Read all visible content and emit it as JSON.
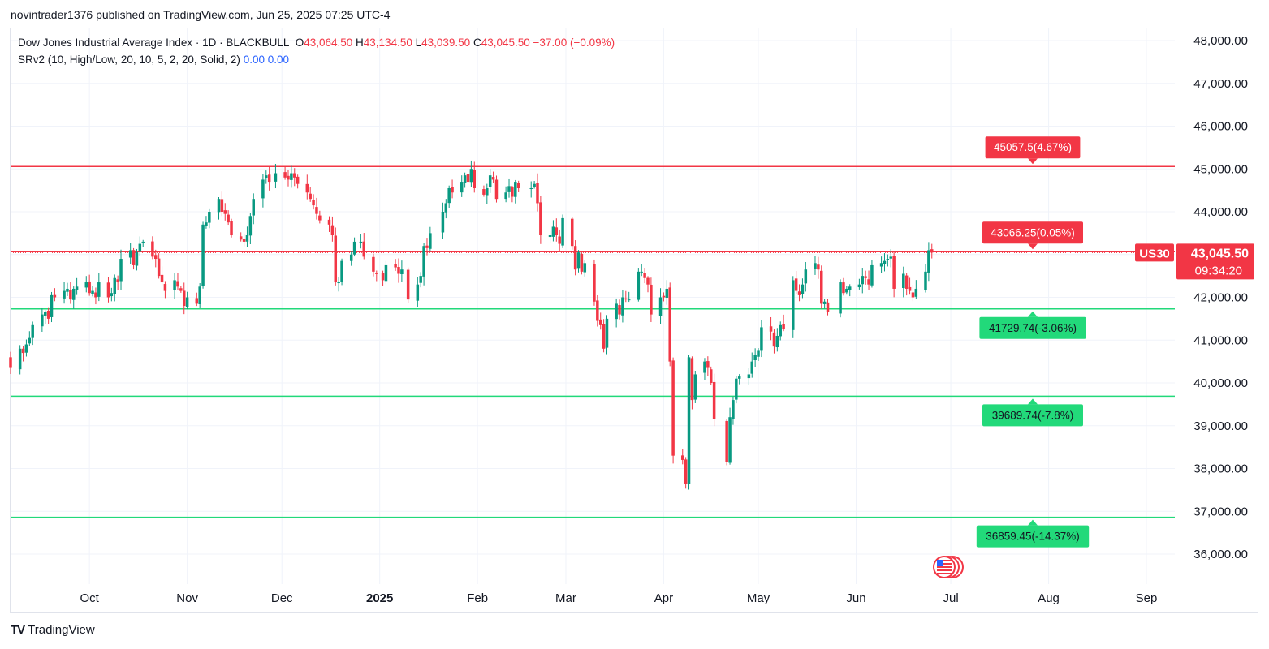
{
  "publisher": "novintrader1376 published on TradingView.com, Jun 25, 2025 07:25 UTC-4",
  "legend": {
    "title": "Dow Jones Industrial Average Index · 1D · BLACKBULL",
    "o_label": "O",
    "o_value": "43,064.50",
    "h_label": "H",
    "h_value": "43,134.50",
    "l_label": "L",
    "l_value": "43,039.50",
    "c_label": "C",
    "c_value": "43,045.50",
    "change": "−37.00 (−0.09%)",
    "indicator": "SRv2 (10, High/Low, 20, 10, 5, 2, 20, Solid, 2)",
    "ind_v1": "0.00",
    "ind_v2": "0.00"
  },
  "footer": {
    "brand": "TradingView",
    "logo": "TV"
  },
  "colors": {
    "up": "#089981",
    "down": "#f23645",
    "support": "#22d97a",
    "resistance": "#f23645",
    "grid": "#f0f3fa"
  },
  "chart_data": {
    "type": "candlestick",
    "symbol": "US30",
    "timeframe": "1D",
    "ylim": [
      35500,
      48300
    ],
    "y_ticks": [
      "48,000.00",
      "47,000.00",
      "46,000.00",
      "45,000.00",
      "44,000.00",
      "43,000.00",
      "42,000.00",
      "41,000.00",
      "40,000.00",
      "39,000.00",
      "38,000.00",
      "37,000.00",
      "36,000.00"
    ],
    "y_tick_values": [
      48000,
      47000,
      46000,
      45000,
      44000,
      43000,
      42000,
      41000,
      40000,
      39000,
      38000,
      37000,
      36000
    ],
    "x_ticks": [
      {
        "label": "Oct",
        "date": "2024-10-01",
        "bold": false
      },
      {
        "label": "Nov",
        "date": "2024-11-01",
        "bold": false
      },
      {
        "label": "Dec",
        "date": "2024-12-01",
        "bold": false
      },
      {
        "label": "2025",
        "date": "2025-01-01",
        "bold": true
      },
      {
        "label": "Feb",
        "date": "2025-02-01",
        "bold": false
      },
      {
        "label": "Mar",
        "date": "2025-03-01",
        "bold": false
      },
      {
        "label": "Apr",
        "date": "2025-04-01",
        "bold": false
      },
      {
        "label": "May",
        "date": "2025-05-01",
        "bold": false
      },
      {
        "label": "Jun",
        "date": "2025-06-01",
        "bold": false
      },
      {
        "label": "Jul",
        "date": "2025-07-01",
        "bold": false
      },
      {
        "label": "Aug",
        "date": "2025-08-01",
        "bold": false
      },
      {
        "label": "Sep",
        "date": "2025-09-01",
        "bold": false
      }
    ],
    "x_range": [
      "2024-09-06",
      "2025-09-10"
    ],
    "last_price": {
      "symbol_label": "US30",
      "value": 43045.5,
      "value_label": "43,045.50",
      "countdown": "09:34:20"
    },
    "levels": [
      {
        "value": 45057.5,
        "label": "45057.5(4.67%)",
        "kind": "resistance"
      },
      {
        "value": 43066.25,
        "label": "43066.25(0.05%)",
        "kind": "resistance"
      },
      {
        "value": 41729.74,
        "label": "41729.74(-3.06%)",
        "kind": "support"
      },
      {
        "value": 39689.74,
        "label": "39689.74(-7.8%)",
        "kind": "support"
      },
      {
        "value": 36859.45,
        "label": "36859.45(-14.37%)",
        "kind": "support"
      }
    ],
    "closes": [
      [
        "2024-09-06",
        40350
      ],
      [
        "2024-09-09",
        40800
      ],
      [
        "2024-09-10",
        40700
      ],
      [
        "2024-09-11",
        40900
      ],
      [
        "2024-09-12",
        41050
      ],
      [
        "2024-09-13",
        41350
      ],
      [
        "2024-09-16",
        41600
      ],
      [
        "2024-09-17",
        41650
      ],
      [
        "2024-09-18",
        41500
      ],
      [
        "2024-09-19",
        42050
      ],
      [
        "2024-09-20",
        42000
      ],
      [
        "2024-09-23",
        42150
      ],
      [
        "2024-09-24",
        42200
      ],
      [
        "2024-09-25",
        41950
      ],
      [
        "2024-09-26",
        42200
      ],
      [
        "2024-09-27",
        42250
      ],
      [
        "2024-09-30",
        42350
      ],
      [
        "2024-10-01",
        42100
      ],
      [
        "2024-10-02",
        42150
      ],
      [
        "2024-10-03",
        42000
      ],
      [
        "2024-10-04",
        42350
      ],
      [
        "2024-10-07",
        42000
      ],
      [
        "2024-10-08",
        42100
      ],
      [
        "2024-10-09",
        42450
      ],
      [
        "2024-10-10",
        42350
      ],
      [
        "2024-10-11",
        42900
      ],
      [
        "2024-10-14",
        43100
      ],
      [
        "2024-10-15",
        42750
      ],
      [
        "2024-10-16",
        43050
      ],
      [
        "2024-10-17",
        43250
      ],
      [
        "2024-10-18",
        43300
      ],
      [
        "2024-10-21",
        42950
      ],
      [
        "2024-10-22",
        42900
      ],
      [
        "2024-10-23",
        42500
      ],
      [
        "2024-10-24",
        42350
      ],
      [
        "2024-10-25",
        42150
      ],
      [
        "2024-10-28",
        42400
      ],
      [
        "2024-10-29",
        42250
      ],
      [
        "2024-10-30",
        42150
      ],
      [
        "2024-10-31",
        41800
      ],
      [
        "2024-11-01",
        42000
      ],
      [
        "2024-11-04",
        41850
      ],
      [
        "2024-11-05",
        42250
      ],
      [
        "2024-11-06",
        43700
      ],
      [
        "2024-11-07",
        43750
      ],
      [
        "2024-11-08",
        44000
      ],
      [
        "2024-11-11",
        44300
      ],
      [
        "2024-11-12",
        44000
      ],
      [
        "2024-11-13",
        43950
      ],
      [
        "2024-11-14",
        43750
      ],
      [
        "2024-11-15",
        43450
      ],
      [
        "2024-11-18",
        43350
      ],
      [
        "2024-11-19",
        43300
      ],
      [
        "2024-11-20",
        43450
      ],
      [
        "2024-11-21",
        43900
      ],
      [
        "2024-11-22",
        44300
      ],
      [
        "2024-11-25",
        44750
      ],
      [
        "2024-11-26",
        44850
      ],
      [
        "2024-11-27",
        44700
      ],
      [
        "2024-11-29",
        44900
      ],
      [
        "2024-12-02",
        44800
      ],
      [
        "2024-12-03",
        44750
      ],
      [
        "2024-12-04",
        44900
      ],
      [
        "2024-12-05",
        44800
      ],
      [
        "2024-12-06",
        44650
      ],
      [
        "2024-12-09",
        44450
      ],
      [
        "2024-12-10",
        44300
      ],
      [
        "2024-12-11",
        44150
      ],
      [
        "2024-12-12",
        43950
      ],
      [
        "2024-12-13",
        43800
      ],
      [
        "2024-12-16",
        43700
      ],
      [
        "2024-12-17",
        43450
      ],
      [
        "2024-12-18",
        42350
      ],
      [
        "2024-12-19",
        42350
      ],
      [
        "2024-12-20",
        42850
      ],
      [
        "2024-12-23",
        43000
      ],
      [
        "2024-12-24",
        43300
      ],
      [
        "2024-12-26",
        43300
      ],
      [
        "2024-12-27",
        42950
      ],
      [
        "2024-12-30",
        42600
      ],
      [
        "2024-12-31",
        42550
      ],
      [
        "2025-01-02",
        42400
      ],
      [
        "2025-01-03",
        42750
      ],
      [
        "2025-01-06",
        42700
      ],
      [
        "2025-01-07",
        42550
      ],
      [
        "2025-01-08",
        42650
      ],
      [
        "2025-01-10",
        41950
      ],
      [
        "2025-01-13",
        42300
      ],
      [
        "2025-01-14",
        42500
      ],
      [
        "2025-01-15",
        43200
      ],
      [
        "2025-01-16",
        43150
      ],
      [
        "2025-01-17",
        43500
      ],
      [
        "2025-01-21",
        44000
      ],
      [
        "2025-01-22",
        44200
      ],
      [
        "2025-01-23",
        44550
      ],
      [
        "2025-01-24",
        44450
      ],
      [
        "2025-01-27",
        44700
      ],
      [
        "2025-01-28",
        44850
      ],
      [
        "2025-01-29",
        44700
      ],
      [
        "2025-01-30",
        45000
      ],
      [
        "2025-01-31",
        44550
      ],
      [
        "2025-02-03",
        44400
      ],
      [
        "2025-02-04",
        44550
      ],
      [
        "2025-02-05",
        44850
      ],
      [
        "2025-02-06",
        44750
      ],
      [
        "2025-02-07",
        44300
      ],
      [
        "2025-02-10",
        44450
      ],
      [
        "2025-02-11",
        44600
      ],
      [
        "2025-02-12",
        44350
      ],
      [
        "2025-02-13",
        44700
      ],
      [
        "2025-02-14",
        44550
      ],
      [
        "2025-02-18",
        44550
      ],
      [
        "2025-02-19",
        44650
      ],
      [
        "2025-02-20",
        44200
      ],
      [
        "2025-02-21",
        43450
      ],
      [
        "2025-02-24",
        43450
      ],
      [
        "2025-02-25",
        43650
      ],
      [
        "2025-02-26",
        43450
      ],
      [
        "2025-02-27",
        43250
      ],
      [
        "2025-02-28",
        43850
      ],
      [
        "2025-03-03",
        43200
      ],
      [
        "2025-03-04",
        42650
      ],
      [
        "2025-03-05",
        43050
      ],
      [
        "2025-03-06",
        42600
      ],
      [
        "2025-03-07",
        42800
      ],
      [
        "2025-03-10",
        41900
      ],
      [
        "2025-03-11",
        41450
      ],
      [
        "2025-03-12",
        41350
      ],
      [
        "2025-03-13",
        40800
      ],
      [
        "2025-03-14",
        41500
      ],
      [
        "2025-03-17",
        41850
      ],
      [
        "2025-03-18",
        41600
      ],
      [
        "2025-03-19",
        42000
      ],
      [
        "2025-03-20",
        41950
      ],
      [
        "2025-03-21",
        41950
      ],
      [
        "2025-03-24",
        42600
      ],
      [
        "2025-03-25",
        42600
      ],
      [
        "2025-03-26",
        42450
      ],
      [
        "2025-03-27",
        42300
      ],
      [
        "2025-03-28",
        41600
      ],
      [
        "2025-03-31",
        42000
      ],
      [
        "2025-04-01",
        42000
      ],
      [
        "2025-04-02",
        42200
      ],
      [
        "2025-04-03",
        40500
      ],
      [
        "2025-04-04",
        38300
      ],
      [
        "2025-04-07",
        38200
      ],
      [
        "2025-04-08",
        37650
      ],
      [
        "2025-04-09",
        40600
      ],
      [
        "2025-04-10",
        39600
      ],
      [
        "2025-04-11",
        40200
      ],
      [
        "2025-04-14",
        40500
      ],
      [
        "2025-04-15",
        40350
      ],
      [
        "2025-04-16",
        40000
      ],
      [
        "2025-04-17",
        39150
      ],
      [
        "2025-04-21",
        38150
      ],
      [
        "2025-04-22",
        39200
      ],
      [
        "2025-04-23",
        39600
      ],
      [
        "2025-04-24",
        40100
      ],
      [
        "2025-04-25",
        40150
      ],
      [
        "2025-04-28",
        40200
      ],
      [
        "2025-04-29",
        40500
      ],
      [
        "2025-04-30",
        40650
      ],
      [
        "2025-05-01",
        40750
      ],
      [
        "2025-05-02",
        41300
      ],
      [
        "2025-05-05",
        41200
      ],
      [
        "2025-05-06",
        40850
      ],
      [
        "2025-05-07",
        41100
      ],
      [
        "2025-05-08",
        41350
      ],
      [
        "2025-05-09",
        41250
      ],
      [
        "2025-05-12",
        42400
      ],
      [
        "2025-05-13",
        42150
      ],
      [
        "2025-05-14",
        42050
      ],
      [
        "2025-05-15",
        42300
      ],
      [
        "2025-05-16",
        42650
      ],
      [
        "2025-05-19",
        42800
      ],
      [
        "2025-05-20",
        42650
      ],
      [
        "2025-05-21",
        41850
      ],
      [
        "2025-05-22",
        41900
      ],
      [
        "2025-05-23",
        41650
      ],
      [
        "2025-05-27",
        42350
      ],
      [
        "2025-05-28",
        42100
      ],
      [
        "2025-05-29",
        42200
      ],
      [
        "2025-05-30",
        42250
      ],
      [
        "2025-06-02",
        42300
      ],
      [
        "2025-06-03",
        42500
      ],
      [
        "2025-06-04",
        42450
      ],
      [
        "2025-06-05",
        42300
      ],
      [
        "2025-06-06",
        42750
      ],
      [
        "2025-06-09",
        42800
      ],
      [
        "2025-06-10",
        42850
      ],
      [
        "2025-06-11",
        42900
      ],
      [
        "2025-06-12",
        42950
      ],
      [
        "2025-06-13",
        42200
      ],
      [
        "2025-06-16",
        42550
      ],
      [
        "2025-06-17",
        42200
      ],
      [
        "2025-06-18",
        42150
      ],
      [
        "2025-06-19",
        42000
      ],
      [
        "2025-06-20",
        42200
      ],
      [
        "2025-06-23",
        42600
      ],
      [
        "2025-06-24",
        43100
      ],
      [
        "2025-06-25",
        43045.5
      ]
    ]
  }
}
